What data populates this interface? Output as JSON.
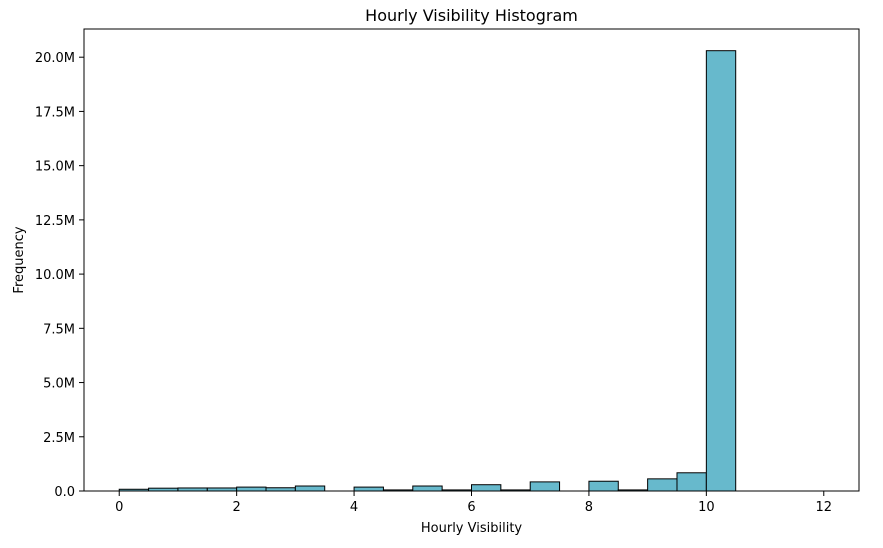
{
  "chart_data": {
    "type": "bar",
    "title": "Hourly Visibility Histogram",
    "xlabel": "Hourly Visibility",
    "ylabel": "Frequency",
    "xlim": [
      -0.6,
      12.6
    ],
    "ylim": [
      0,
      21300000
    ],
    "grid": false,
    "legend": "none",
    "bar_color": "#67b9cc",
    "edge_color": "#000000",
    "x_ticks": [
      0,
      2,
      4,
      6,
      8,
      10,
      12
    ],
    "x_tick_labels": [
      "0",
      "2",
      "4",
      "6",
      "8",
      "10",
      "12"
    ],
    "y_ticks": [
      0,
      2500000,
      5000000,
      7500000,
      10000000,
      12500000,
      15000000,
      17500000,
      20000000
    ],
    "y_tick_labels": [
      "0.0",
      "2.5M",
      "5.0M",
      "7.5M",
      "10.0M",
      "12.5M",
      "15.0M",
      "17.5M",
      "20.0M"
    ],
    "bins": [
      {
        "start": 0.0,
        "end": 0.5,
        "value": 80000
      },
      {
        "start": 0.5,
        "end": 1.0,
        "value": 130000
      },
      {
        "start": 1.0,
        "end": 1.5,
        "value": 140000
      },
      {
        "start": 1.5,
        "end": 2.0,
        "value": 140000
      },
      {
        "start": 2.0,
        "end": 2.5,
        "value": 180000
      },
      {
        "start": 2.5,
        "end": 3.0,
        "value": 150000
      },
      {
        "start": 3.0,
        "end": 3.5,
        "value": 230000
      },
      {
        "start": 3.5,
        "end": 4.0,
        "value": 0
      },
      {
        "start": 4.0,
        "end": 4.5,
        "value": 180000
      },
      {
        "start": 4.5,
        "end": 5.0,
        "value": 50000
      },
      {
        "start": 5.0,
        "end": 5.5,
        "value": 230000
      },
      {
        "start": 5.5,
        "end": 6.0,
        "value": 50000
      },
      {
        "start": 6.0,
        "end": 6.5,
        "value": 290000
      },
      {
        "start": 6.5,
        "end": 7.0,
        "value": 50000
      },
      {
        "start": 7.0,
        "end": 7.5,
        "value": 420000
      },
      {
        "start": 7.5,
        "end": 8.0,
        "value": 0
      },
      {
        "start": 8.0,
        "end": 8.5,
        "value": 450000
      },
      {
        "start": 8.5,
        "end": 9.0,
        "value": 50000
      },
      {
        "start": 9.0,
        "end": 9.5,
        "value": 560000
      },
      {
        "start": 9.5,
        "end": 10.0,
        "value": 840000
      },
      {
        "start": 10.0,
        "end": 10.5,
        "value": 20300000
      }
    ]
  }
}
